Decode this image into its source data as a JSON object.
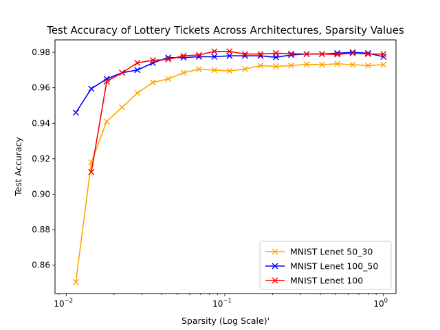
{
  "chart_data": {
    "type": "line",
    "title": "Test Accuracy of Lottery Tickets Across Architectures, Sparsity Values",
    "xlabel": "Sparsity (Log Scale)'",
    "ylabel": "Test Accuracy",
    "xscale": "log",
    "xlim": [
      0.0085,
      1.2
    ],
    "ylim": [
      0.844,
      0.987
    ],
    "x_ticks": [
      {
        "value": 0.01,
        "base": "10",
        "exp": "−2"
      },
      {
        "value": 0.1,
        "base": "10",
        "exp": "−1"
      },
      {
        "value": 1,
        "base": "10",
        "exp": "0"
      }
    ],
    "y_ticks": [
      {
        "value": 0.86,
        "label": "0.86"
      },
      {
        "value": 0.88,
        "label": "0.88"
      },
      {
        "value": 0.9,
        "label": "0.90"
      },
      {
        "value": 0.92,
        "label": "0.92"
      },
      {
        "value": 0.94,
        "label": "0.94"
      },
      {
        "value": 0.96,
        "label": "0.96"
      },
      {
        "value": 0.98,
        "label": "0.98"
      }
    ],
    "grid": false,
    "legend_position": "lower-right",
    "x": [
      0.0115,
      0.0144,
      0.018,
      0.0225,
      0.0281,
      0.0352,
      0.044,
      0.055,
      0.0687,
      0.0859,
      0.107,
      0.134,
      0.168,
      0.21,
      0.262,
      0.328,
      0.41,
      0.512,
      0.64,
      0.8,
      1.0
    ],
    "series": [
      {
        "name": "MNIST Lenet 50_30",
        "color": "#ffa500",
        "marker": "x",
        "values": [
          0.8505,
          0.918,
          0.941,
          0.949,
          0.957,
          0.963,
          0.965,
          0.9685,
          0.9705,
          0.97,
          0.9695,
          0.9705,
          0.9725,
          0.972,
          0.9725,
          0.9732,
          0.973,
          0.9735,
          0.973,
          0.9725,
          0.973
        ]
      },
      {
        "name": "MNIST Lenet 100_50",
        "color": "#0000ff",
        "marker": "x",
        "values": [
          0.946,
          0.9595,
          0.965,
          0.9685,
          0.97,
          0.974,
          0.977,
          0.977,
          0.9775,
          0.9775,
          0.978,
          0.978,
          0.978,
          0.9772,
          0.9785,
          0.979,
          0.979,
          0.9795,
          0.98,
          0.9795,
          0.9775
        ]
      },
      {
        "name": "MNIST Lenet 100",
        "color": "#ff0000",
        "marker": "x",
        "values": [
          null,
          0.9125,
          0.9635,
          0.9685,
          0.974,
          0.9755,
          0.976,
          0.978,
          0.9785,
          0.9805,
          0.9805,
          0.979,
          0.979,
          0.9795,
          0.9792,
          0.979,
          0.979,
          0.9788,
          0.9795,
          0.979,
          0.979
        ]
      }
    ]
  }
}
